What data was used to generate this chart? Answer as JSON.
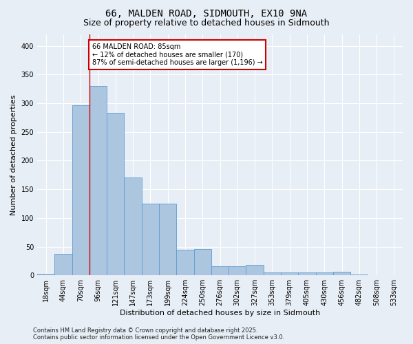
{
  "title": "66, MALDEN ROAD, SIDMOUTH, EX10 9NA",
  "subtitle": "Size of property relative to detached houses in Sidmouth",
  "xlabel": "Distribution of detached houses by size in Sidmouth",
  "ylabel": "Number of detached properties",
  "categories": [
    "18sqm",
    "44sqm",
    "70sqm",
    "96sqm",
    "121sqm",
    "147sqm",
    "173sqm",
    "199sqm",
    "224sqm",
    "250sqm",
    "276sqm",
    "302sqm",
    "327sqm",
    "353sqm",
    "379sqm",
    "405sqm",
    "430sqm",
    "456sqm",
    "482sqm",
    "508sqm",
    "533sqm"
  ],
  "values": [
    3,
    38,
    297,
    330,
    283,
    170,
    125,
    125,
    45,
    46,
    16,
    16,
    18,
    5,
    5,
    5,
    5,
    6,
    2,
    0,
    0
  ],
  "bar_color": "#adc6e0",
  "bar_edge_color": "#5b9bd5",
  "bg_color": "#e8eef5",
  "annotation_text": "66 MALDEN ROAD: 85sqm\n← 12% of detached houses are smaller (170)\n87% of semi-detached houses are larger (1,196) →",
  "annotation_box_color": "#ffffff",
  "annotation_box_edge": "#cc0000",
  "vline_x": 2.5,
  "footer": "Contains HM Land Registry data © Crown copyright and database right 2025.\nContains public sector information licensed under the Open Government Licence v3.0.",
  "ylim": [
    0,
    420
  ],
  "yticks": [
    0,
    50,
    100,
    150,
    200,
    250,
    300,
    350,
    400
  ],
  "grid_color": "#ffffff",
  "title_fontsize": 10,
  "subtitle_fontsize": 9,
  "xlabel_fontsize": 8,
  "ylabel_fontsize": 8,
  "tick_fontsize": 7,
  "annotation_fontsize": 7,
  "footer_fontsize": 6
}
